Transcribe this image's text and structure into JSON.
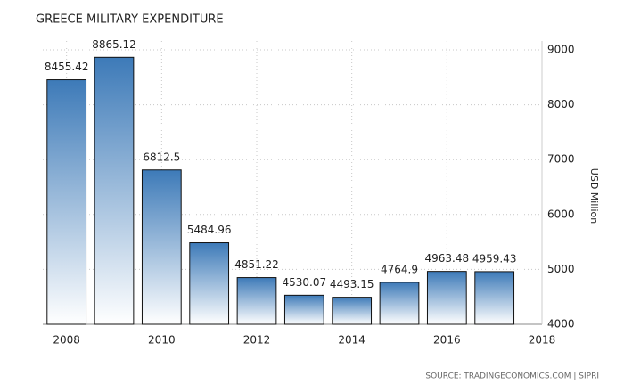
{
  "chart_data": {
    "type": "bar",
    "title": "GREECE MILITARY EXPENDITURE",
    "y_label": "USD Million",
    "source": "SOURCE: TRADINGECONOMICS.COM | SIPRI",
    "x": [
      2008,
      2009,
      2010,
      2011,
      2012,
      2013,
      2014,
      2015,
      2016,
      2017
    ],
    "values": [
      8455.42,
      8865.12,
      6812.5,
      5484.96,
      4851.22,
      4530.07,
      4493.15,
      4764.9,
      4963.48,
      4959.43
    ],
    "color": "#3d7ab8",
    "xlim": [
      2007.5,
      2018
    ],
    "xticks": [
      2008,
      2010,
      2012,
      2014,
      2016,
      2018
    ],
    "ylim": [
      4000,
      9000
    ],
    "yticks": [
      4000,
      5000,
      6000,
      7000,
      8000,
      9000
    ],
    "grid": true
  }
}
